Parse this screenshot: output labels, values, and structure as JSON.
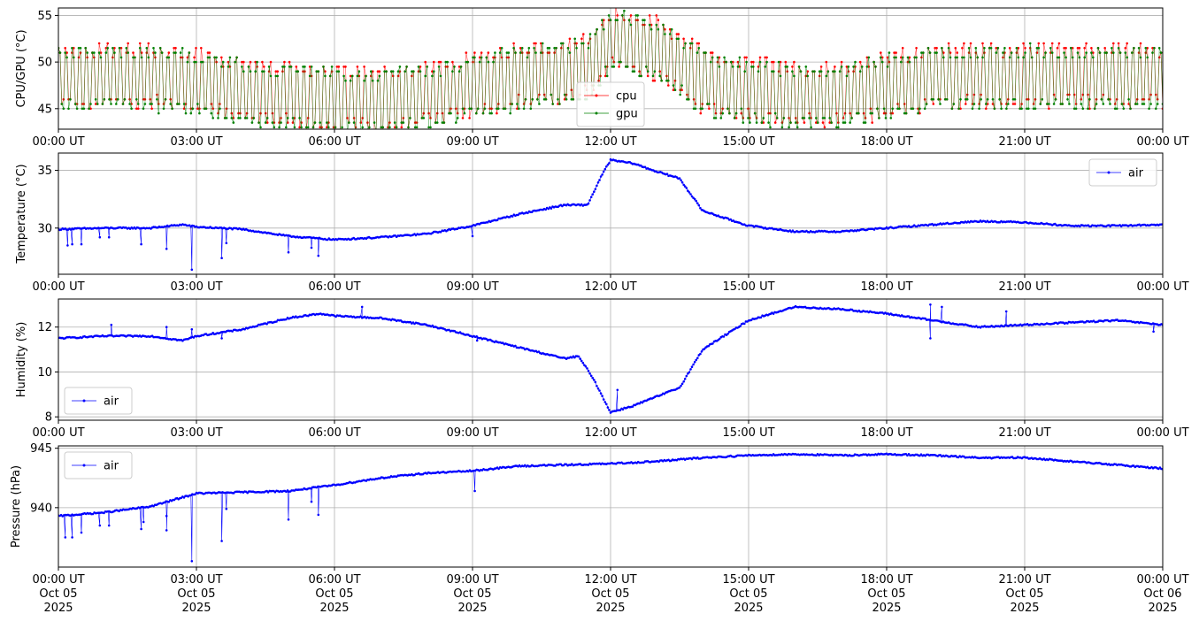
{
  "chart_data": [
    {
      "type": "line",
      "ylabel": "CPU/GPU (°C)",
      "xlabel": "",
      "ylim": [
        42.8,
        55.8
      ],
      "yticks": [
        45,
        50,
        55
      ],
      "xlim": [
        0,
        24
      ],
      "x_tick_labels": [
        "00:00 UT",
        "03:00 UT",
        "06:00 UT",
        "09:00 UT",
        "12:00 UT",
        "15:00 UT",
        "18:00 UT",
        "21:00 UT",
        "00:00 UT"
      ],
      "grid": true,
      "legend_placement": "lower-center",
      "series": [
        {
          "name": "cpu",
          "color": "#ff0000",
          "oscillation": 3.5,
          "x": [
            0,
            1,
            2,
            3,
            4,
            5,
            6,
            7,
            8,
            9,
            10,
            11,
            11.5,
            12,
            12.5,
            13,
            13.5,
            14,
            15,
            16,
            17,
            18,
            19,
            20,
            21,
            22,
            23,
            24
          ],
          "values": [
            48.5,
            48.5,
            48.5,
            48,
            47,
            46.5,
            46,
            46,
            46.5,
            47.5,
            48.5,
            49,
            49.5,
            52.5,
            52,
            51.5,
            50,
            48,
            47,
            46.5,
            46.5,
            47.5,
            48.5,
            48.5,
            48.5,
            48.5,
            48.5,
            48.5
          ]
        },
        {
          "name": "gpu",
          "color": "#008000",
          "oscillation": 3.5,
          "x": [
            0,
            1,
            2,
            3,
            4,
            5,
            6,
            7,
            8,
            9,
            10,
            11,
            11.5,
            12,
            12.5,
            13,
            13.5,
            14,
            15,
            16,
            17,
            18,
            19,
            20,
            21,
            22,
            23,
            24
          ],
          "values": [
            48.3,
            48.3,
            48.3,
            47.8,
            46.8,
            46.3,
            45.8,
            45.8,
            46.3,
            47.3,
            48.3,
            48.8,
            49.3,
            52.3,
            51.8,
            51.3,
            49.8,
            47.8,
            46.8,
            46.3,
            46.3,
            47.3,
            48.3,
            48.3,
            48.3,
            48.3,
            48.3,
            48.3
          ]
        }
      ]
    },
    {
      "type": "line",
      "ylabel": "Temperature (°C)",
      "xlabel": "",
      "ylim": [
        26,
        36.5
      ],
      "yticks": [
        30,
        35
      ],
      "xlim": [
        0,
        24
      ],
      "x_tick_labels": [
        "00:00 UT",
        "03:00 UT",
        "06:00 UT",
        "09:00 UT",
        "12:00 UT",
        "15:00 UT",
        "18:00 UT",
        "21:00 UT",
        "00:00 UT"
      ],
      "grid": true,
      "legend_placement": "upper-right",
      "series": [
        {
          "name": "air",
          "color": "#0000ff",
          "x": [
            0,
            1,
            2,
            2.7,
            3,
            4,
            5,
            6,
            7,
            8,
            9,
            10,
            11,
            11.5,
            11.8,
            12,
            12.5,
            13,
            13.5,
            14,
            15,
            16,
            17,
            18,
            19,
            20,
            21,
            22,
            23,
            24
          ],
          "values": [
            29.9,
            30.0,
            30.0,
            30.3,
            30.1,
            29.9,
            29.3,
            29.0,
            29.2,
            29.5,
            30.2,
            31.2,
            32.0,
            32.0,
            34.5,
            35.9,
            35.6,
            34.9,
            34.3,
            31.5,
            30.2,
            29.7,
            29.7,
            30.0,
            30.3,
            30.6,
            30.5,
            30.2,
            30.2,
            30.3
          ],
          "outliers": [
            {
              "x": 0.2,
              "y": 28.5
            },
            {
              "x": 0.3,
              "y": 28.6
            },
            {
              "x": 0.5,
              "y": 28.6
            },
            {
              "x": 0.9,
              "y": 29.2
            },
            {
              "x": 1.1,
              "y": 29.2
            },
            {
              "x": 1.8,
              "y": 28.6
            },
            {
              "x": 2.35,
              "y": 28.2
            },
            {
              "x": 2.9,
              "y": 26.4
            },
            {
              "x": 3.55,
              "y": 27.4
            },
            {
              "x": 3.65,
              "y": 28.7
            },
            {
              "x": 5.0,
              "y": 27.9
            },
            {
              "x": 5.5,
              "y": 28.3
            },
            {
              "x": 5.65,
              "y": 27.6
            },
            {
              "x": 9.0,
              "y": 29.3
            }
          ]
        }
      ]
    },
    {
      "type": "line",
      "ylabel": "Humidity (%)",
      "xlabel": "",
      "ylim": [
        7.85,
        13.25
      ],
      "yticks": [
        8,
        10,
        12
      ],
      "xlim": [
        0,
        24
      ],
      "x_tick_labels": [
        "00:00 UT",
        "03:00 UT",
        "06:00 UT",
        "09:00 UT",
        "12:00 UT",
        "15:00 UT",
        "18:00 UT",
        "21:00 UT",
        "00:00 UT"
      ],
      "grid": true,
      "legend_placement": "lower-left",
      "series": [
        {
          "name": "air",
          "color": "#0000ff",
          "x": [
            0,
            1,
            2,
            2.7,
            3,
            4,
            5,
            5.7,
            6,
            7,
            8,
            9,
            10,
            11,
            11.3,
            11.6,
            12,
            12.5,
            13,
            13.5,
            14,
            15,
            16,
            17,
            18,
            19,
            20,
            21,
            22,
            23,
            24
          ],
          "values": [
            11.5,
            11.6,
            11.6,
            11.4,
            11.6,
            11.9,
            12.4,
            12.6,
            12.5,
            12.4,
            12.1,
            11.6,
            11.1,
            10.6,
            10.7,
            9.8,
            8.2,
            8.5,
            8.9,
            9.3,
            11.0,
            12.3,
            12.9,
            12.8,
            12.6,
            12.3,
            12.0,
            12.1,
            12.2,
            12.3,
            12.1
          ],
          "outliers": [
            {
              "x": 1.15,
              "y": 12.1
            },
            {
              "x": 2.35,
              "y": 12.0
            },
            {
              "x": 2.9,
              "y": 11.9
            },
            {
              "x": 3.55,
              "y": 11.5
            },
            {
              "x": 6.6,
              "y": 12.9
            },
            {
              "x": 9.1,
              "y": 11.4
            },
            {
              "x": 12.15,
              "y": 9.2
            },
            {
              "x": 18.95,
              "y": 13.0
            },
            {
              "x": 18.95,
              "y": 11.5
            },
            {
              "x": 19.2,
              "y": 12.9
            },
            {
              "x": 20.6,
              "y": 12.7
            },
            {
              "x": 23.8,
              "y": 11.8
            }
          ]
        }
      ]
    },
    {
      "type": "line",
      "ylabel": "Pressure (hPa)",
      "xlabel": "",
      "ylim": [
        935.0,
        945.2
      ],
      "yticks": [
        940,
        945
      ],
      "xlim": [
        0,
        24
      ],
      "x_tick_labels": [
        [
          "00:00 UT",
          "Oct 05",
          "2025"
        ],
        [
          "03:00 UT",
          "Oct 05",
          "2025"
        ],
        [
          "06:00 UT",
          "Oct 05",
          "2025"
        ],
        [
          "09:00 UT",
          "Oct 05",
          "2025"
        ],
        [
          "12:00 UT",
          "Oct 05",
          "2025"
        ],
        [
          "15:00 UT",
          "Oct 05",
          "2025"
        ],
        [
          "18:00 UT",
          "Oct 05",
          "2025"
        ],
        [
          "21:00 UT",
          "Oct 05",
          "2025"
        ],
        [
          "00:00 UT",
          "Oct 06",
          "2025"
        ]
      ],
      "grid": true,
      "legend_placement": "upper-left",
      "series": [
        {
          "name": "air",
          "color": "#0000ff",
          "x": [
            0,
            1,
            2,
            3,
            4,
            5,
            6,
            7,
            8,
            9,
            10,
            11,
            12,
            13,
            14,
            15,
            16,
            17,
            18,
            19,
            20,
            21,
            22,
            23,
            24
          ],
          "values": [
            939.3,
            939.6,
            940.1,
            941.2,
            941.3,
            941.4,
            941.9,
            942.5,
            942.9,
            943.1,
            943.5,
            943.6,
            943.7,
            943.9,
            944.2,
            944.4,
            944.5,
            944.4,
            944.5,
            944.4,
            944.2,
            944.2,
            943.9,
            943.6,
            943.3
          ],
          "outliers": [
            {
              "x": 0.15,
              "y": 937.5
            },
            {
              "x": 0.3,
              "y": 937.5
            },
            {
              "x": 0.5,
              "y": 937.9
            },
            {
              "x": 0.9,
              "y": 938.5
            },
            {
              "x": 1.1,
              "y": 938.5
            },
            {
              "x": 1.8,
              "y": 938.2
            },
            {
              "x": 1.85,
              "y": 938.8
            },
            {
              "x": 2.35,
              "y": 938.1
            },
            {
              "x": 2.35,
              "y": 939.3
            },
            {
              "x": 2.9,
              "y": 935.5
            },
            {
              "x": 3.55,
              "y": 937.2
            },
            {
              "x": 3.65,
              "y": 939.9
            },
            {
              "x": 5.0,
              "y": 939.0
            },
            {
              "x": 5.5,
              "y": 940.5
            },
            {
              "x": 5.65,
              "y": 939.4
            },
            {
              "x": 9.05,
              "y": 941.4
            }
          ]
        }
      ]
    }
  ]
}
